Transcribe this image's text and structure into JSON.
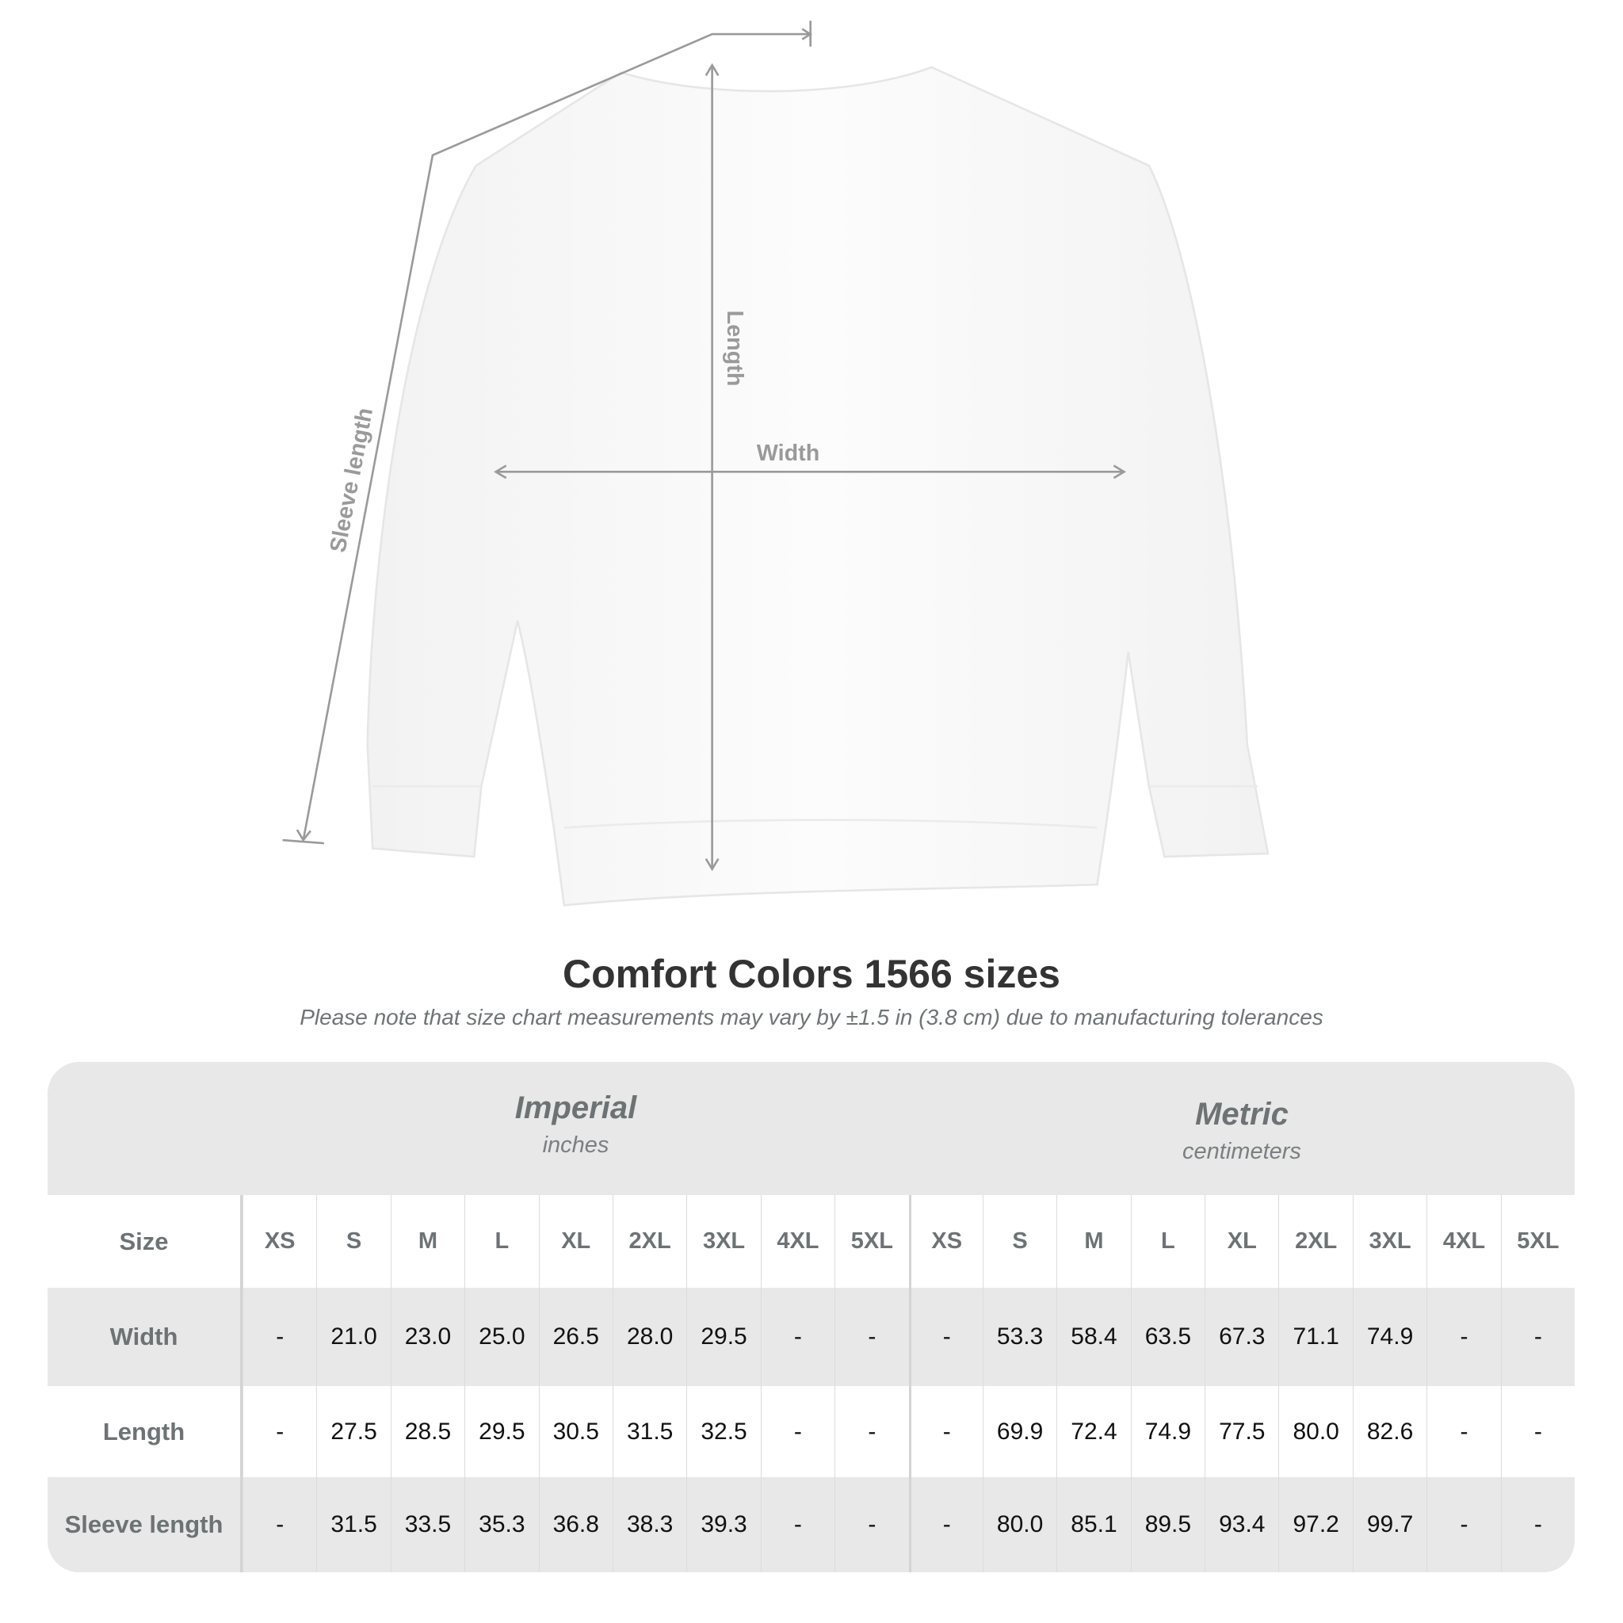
{
  "diagram": {
    "labels": {
      "sleeve": "Sleeve length",
      "length": "Length",
      "width": "Width"
    },
    "colors": {
      "garment": "#ffffff",
      "measure_line": "#9a9a9a",
      "label": "#9a9a9a"
    }
  },
  "title": "Comfort Colors 1566 sizes",
  "note": "Please note that size chart measurements may vary by ±1.5 in (3.8 cm) due to manufacturing tolerances",
  "table": {
    "imperial": {
      "title": "Imperial",
      "unit": "inches"
    },
    "metric": {
      "title": "Metric",
      "unit": "centimeters"
    },
    "size_label": "Size",
    "sizes": [
      "XS",
      "S",
      "M",
      "L",
      "XL",
      "2XL",
      "3XL",
      "4XL",
      "5XL"
    ],
    "rows": [
      {
        "label": "Width",
        "imperial": [
          "-",
          "21.0",
          "23.0",
          "25.0",
          "26.5",
          "28.0",
          "29.5",
          "-",
          "-"
        ],
        "metric": [
          "-",
          "53.3",
          "58.4",
          "63.5",
          "67.3",
          "71.1",
          "74.9",
          "-",
          "-"
        ]
      },
      {
        "label": "Length",
        "imperial": [
          "-",
          "27.5",
          "28.5",
          "29.5",
          "30.5",
          "31.5",
          "32.5",
          "-",
          "-"
        ],
        "metric": [
          "-",
          "69.9",
          "72.4",
          "74.9",
          "77.5",
          "80.0",
          "82.6",
          "-",
          "-"
        ]
      },
      {
        "label": "Sleeve length",
        "imperial": [
          "-",
          "31.5",
          "33.5",
          "35.3",
          "36.8",
          "38.3",
          "39.3",
          "-",
          "-"
        ],
        "metric": [
          "-",
          "80.0",
          "85.1",
          "89.5",
          "93.4",
          "97.2",
          "99.7",
          "-",
          "-"
        ]
      }
    ]
  }
}
